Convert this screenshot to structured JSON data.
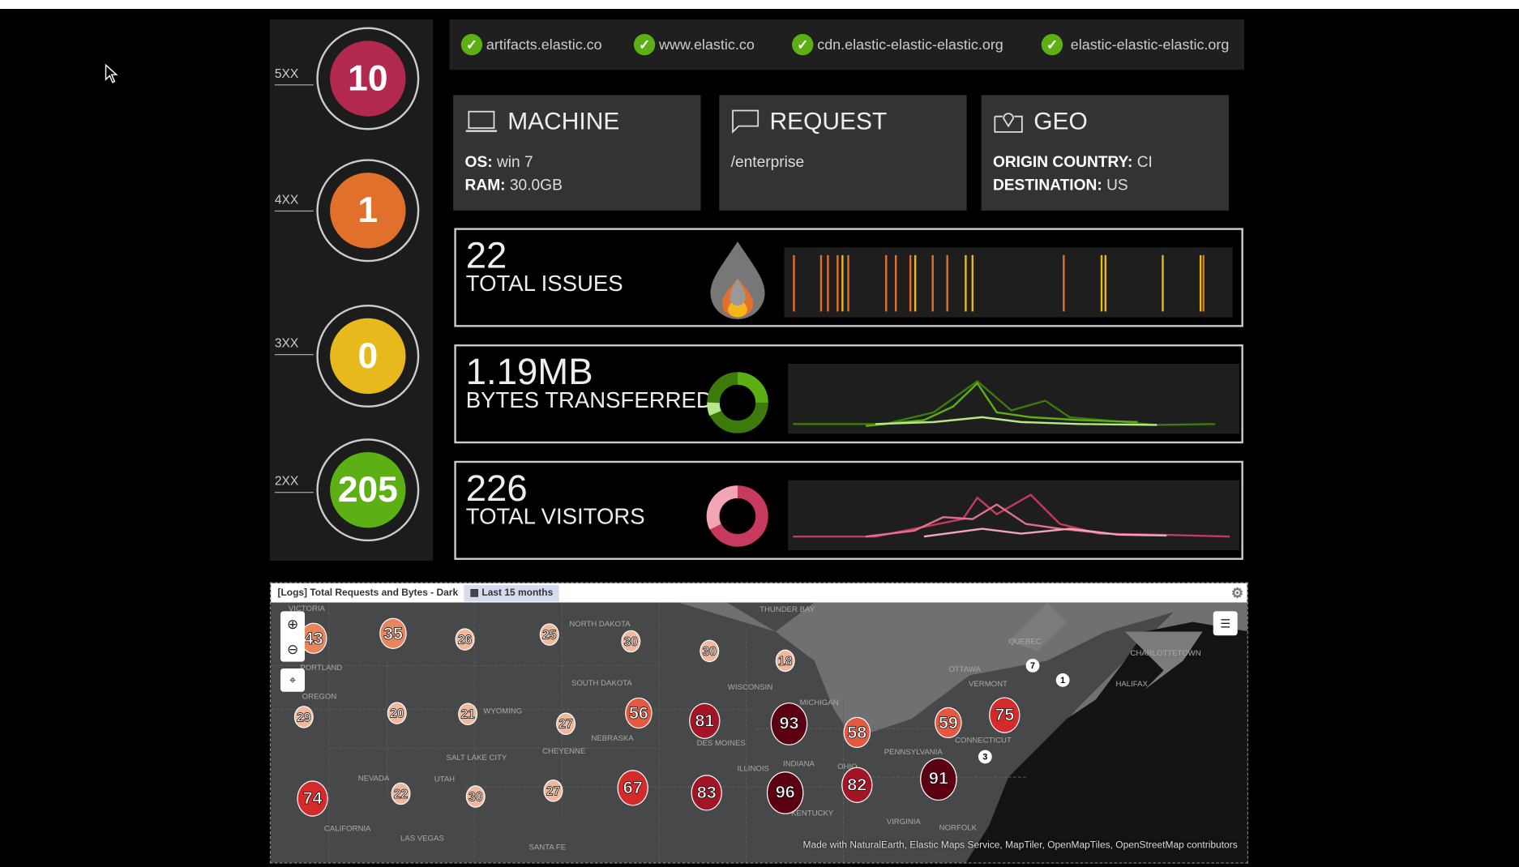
{
  "status_codes": [
    {
      "label": "5XX",
      "value": "10",
      "color": "#b3294e"
    },
    {
      "label": "4XX",
      "value": "1",
      "color": "#e0702a"
    },
    {
      "label": "3XX",
      "value": "0",
      "color": "#e8b91c"
    },
    {
      "label": "2XX",
      "value": "205",
      "color": "#5cb014"
    }
  ],
  "hosts": [
    "artifacts.elastic.co",
    "www.elastic.co",
    "cdn.elastic-elastic-elastic.org",
    "elastic-elastic-elastic.org"
  ],
  "machine": {
    "title": "MACHINE",
    "os_label": "OS:",
    "os": "win 7",
    "ram_label": "RAM:",
    "ram": "30.0GB"
  },
  "request": {
    "title": "REQUEST",
    "path": "/enterprise"
  },
  "geo": {
    "title": "GEO",
    "origin_label": "ORIGIN COUNTRY:",
    "origin": "CI",
    "dest_label": "DESTINATION:",
    "dest": "US"
  },
  "metrics": {
    "issues": {
      "value": "22",
      "label": "TOTAL ISSUES"
    },
    "bytes": {
      "value": "1.19MB",
      "label": "BYTES TRANSFERRED",
      "color": "#5cb014"
    },
    "visitors": {
      "value": "226",
      "label": "TOTAL VISITORS",
      "color": "#e0728a"
    }
  },
  "map": {
    "title": "[Logs] Total Requests and Bytes - Dark",
    "time_range": "Last 15 months",
    "attribution": "Made with NaturalEarth, Elastic Maps Service, MapTiler, OpenMapTiles, OpenStreetMap contributors",
    "clusters": [
      "43",
      "35",
      "26",
      "25",
      "30",
      "30",
      "18",
      "29",
      "20",
      "21",
      "27",
      "56",
      "81",
      "93",
      "58",
      "59",
      "75",
      "74",
      "22",
      "30",
      "27",
      "67",
      "83",
      "96",
      "82",
      "91",
      "7",
      "1",
      "3"
    ],
    "places": [
      "VICTORIA",
      "THUNDER BAY",
      "NORTH DAKOTA",
      "SOUTH DAKOTA",
      "WISCONSIN",
      "MICHIGAN",
      "OTTAWA",
      "QUEBEC",
      "VERMONT",
      "CHARLOTTETOWN",
      "HALIFAX",
      "PORTLAND",
      "OREGON",
      "WYOMING",
      "NEBRASKA",
      "DES MOINES",
      "CHEYENNE",
      "SALT LAKE CITY",
      "ILLINOIS",
      "INDIANA",
      "OHIO",
      "PENNSYLVANIA",
      "CONNECTICUT",
      "NEVADA",
      "UTAH",
      "KENTUCKY",
      "VIRGINIA",
      "NORFOLK",
      "CALIFORNIA",
      "LAS VEGAS",
      "SANTA FE"
    ]
  }
}
